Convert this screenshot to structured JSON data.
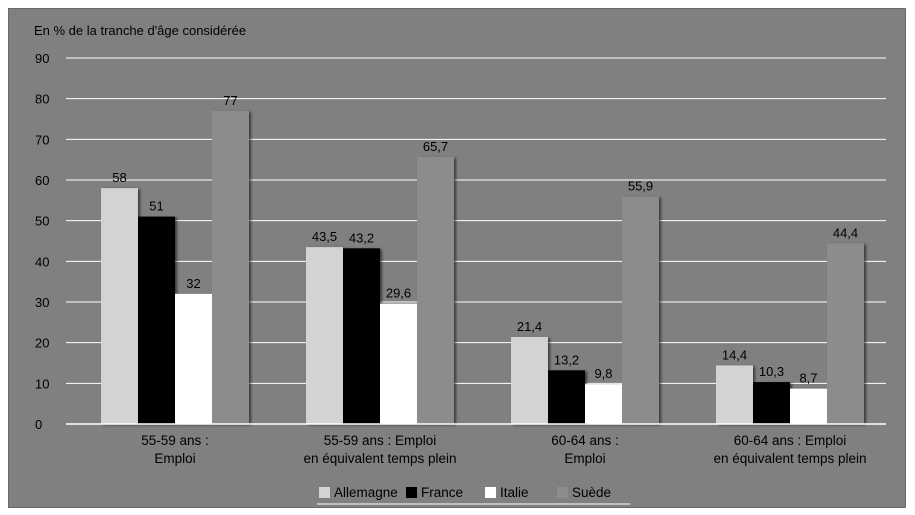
{
  "chart_data": {
    "type": "bar",
    "ylabel": "En % de la tranche d'âge considérée",
    "ylim": [
      0,
      90
    ],
    "yticks": [
      0,
      10,
      20,
      30,
      40,
      50,
      60,
      70,
      80,
      90
    ],
    "grid": true,
    "legend_position": "bottom",
    "categories": [
      [
        "55-59 ans :",
        "Emploi"
      ],
      [
        "55-59 ans : Emploi",
        "en équivalent temps plein"
      ],
      [
        "60-64  ans :",
        "Emploi"
      ],
      [
        "60-64 ans : Emploi",
        "en équivalent temps plein"
      ]
    ],
    "series": [
      {
        "name": "Allemagne",
        "color": "#d3d3d3",
        "values": [
          58,
          43.5,
          21.4,
          14.4
        ],
        "labels": [
          "58",
          "43,5",
          "21,4",
          "14,4"
        ]
      },
      {
        "name": "France",
        "color": "#000000",
        "values": [
          51,
          43.2,
          13.2,
          10.3
        ],
        "labels": [
          "51",
          "43,2",
          "13,2",
          "10,3"
        ]
      },
      {
        "name": "Italie",
        "color": "#ffffff",
        "values": [
          32,
          29.6,
          9.8,
          8.7
        ],
        "labels": [
          "32",
          "29,6",
          "9,8",
          "8,7"
        ]
      },
      {
        "name": "Suède",
        "color": "#8c8c8c",
        "values": [
          77,
          65.7,
          55.9,
          44.4
        ],
        "labels": [
          "77",
          "65,7",
          "55,9",
          "44,4"
        ]
      }
    ]
  }
}
